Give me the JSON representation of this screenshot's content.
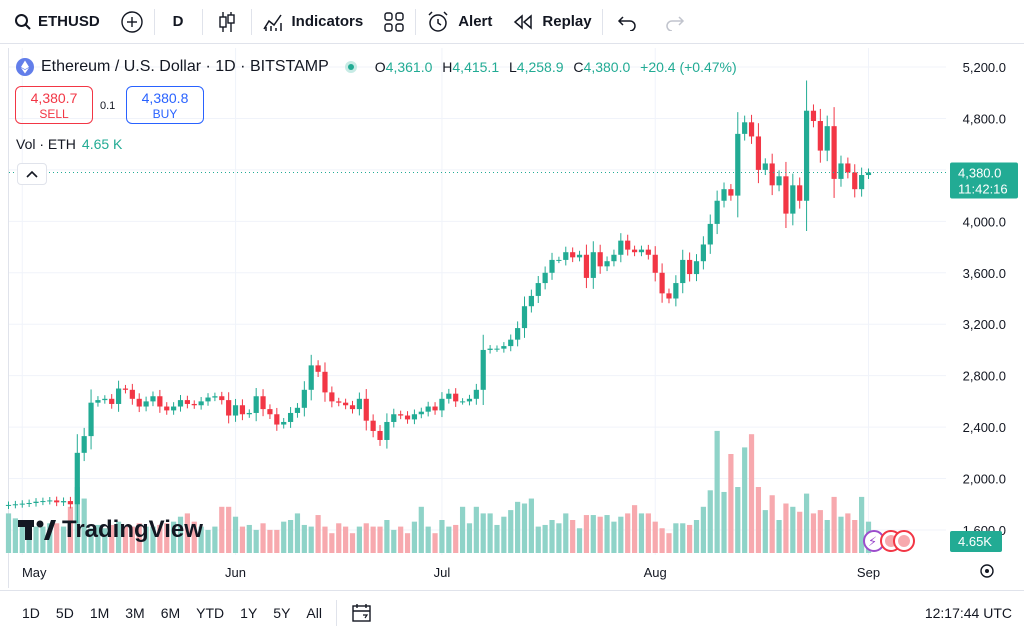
{
  "toolbar": {
    "symbol": "ETHUSD",
    "interval": "D",
    "indicators_label": "Indicators",
    "alert_label": "Alert",
    "replay_label": "Replay"
  },
  "legend": {
    "title": "Ethereum / U.S. Dollar · 1D · BITSTAMP",
    "o_label": "O",
    "o_value": "4,361.0",
    "h_label": "H",
    "h_value": "4,415.1",
    "l_label": "L",
    "l_value": "4,258.9",
    "c_label": "C",
    "c_value": "4,380.0",
    "change": "+20.4 (+0.47%)"
  },
  "trade": {
    "sell_price": "4,380.7",
    "sell_label": "SELL",
    "spread": "0.1",
    "buy_price": "4,380.8",
    "buy_label": "BUY"
  },
  "volume_legend": {
    "label": "Vol · ETH",
    "value": "4.65 K"
  },
  "price_tag": {
    "price": "4,380.0",
    "countdown": "11:42:16"
  },
  "volume_tag": "4.65K",
  "logo_text": "TradingView",
  "bottom": {
    "ranges": [
      "1D",
      "5D",
      "1M",
      "3M",
      "6M",
      "YTD",
      "1Y",
      "5Y",
      "All"
    ],
    "clock": "12:17:44 UTC"
  },
  "colors": {
    "up": "#22ab94",
    "down": "#f23645",
    "up_vol": "#8fd3c8",
    "down_vol": "#f7a9ae",
    "accent": "#2962ff"
  },
  "chart_data": {
    "type": "candlestick",
    "y_ticks": [
      "5,200.0",
      "4,800.0",
      "4,400.0",
      "4,000.0",
      "3,600.0",
      "3,200.0",
      "2,800.0",
      "2,400.0",
      "2,000.0",
      "1,600.0"
    ],
    "y_tick_values": [
      5200,
      4800,
      4400,
      4000,
      3600,
      3200,
      2800,
      2400,
      2000,
      1600
    ],
    "ylim": [
      1600,
      5200
    ],
    "x_ticks": [
      {
        "label": "May",
        "day": 2
      },
      {
        "label": "Jun",
        "day": 33
      },
      {
        "label": "Jul",
        "day": 63
      },
      {
        "label": "Aug",
        "day": 94
      },
      {
        "label": "Sep",
        "day": 125
      }
    ],
    "grid": true,
    "last_price": 4380.0,
    "closes": [
      1795,
      1800,
      1805,
      1810,
      1820,
      1825,
      1830,
      1815,
      1825,
      1800,
      2200,
      2330,
      2590,
      2610,
      2620,
      2580,
      2700,
      2690,
      2620,
      2560,
      2600,
      2640,
      2560,
      2530,
      2560,
      2610,
      2580,
      2570,
      2600,
      2630,
      2640,
      2610,
      2490,
      2570,
      2500,
      2510,
      2640,
      2540,
      2500,
      2420,
      2440,
      2510,
      2550,
      2690,
      2880,
      2830,
      2670,
      2600,
      2590,
      2570,
      2540,
      2620,
      2450,
      2370,
      2300,
      2440,
      2500,
      2490,
      2460,
      2500,
      2520,
      2560,
      2530,
      2620,
      2660,
      2600,
      2600,
      2620,
      2690,
      3000,
      3010,
      3010,
      3030,
      3080,
      3170,
      3340,
      3420,
      3520,
      3600,
      3700,
      3700,
      3760,
      3720,
      3740,
      3560,
      3760,
      3650,
      3690,
      3740,
      3850,
      3780,
      3760,
      3780,
      3740,
      3600,
      3440,
      3400,
      3520,
      3700,
      3590,
      3690,
      3820,
      3980,
      4160,
      4250,
      4200,
      4680,
      4770,
      4660,
      4400,
      4450,
      4280,
      4350,
      4060,
      4280,
      4160,
      4860,
      4780,
      4550,
      4740,
      4330,
      4450,
      4380,
      4250,
      4360,
      4380
    ],
    "volumes": [
      1.2,
      1.05,
      0.85,
      0.8,
      0.8,
      0.8,
      0.9,
      0.9,
      0.8,
      1.4,
      2.0,
      1.65,
      0.75,
      0.85,
      0.75,
      0.85,
      0.95,
      0.8,
      0.8,
      0.9,
      0.8,
      0.8,
      0.85,
      0.9,
      0.95,
      1.1,
      1.2,
      0.95,
      0.8,
      0.7,
      0.8,
      1.4,
      1.4,
      1.1,
      0.8,
      0.85,
      0.7,
      0.9,
      0.7,
      0.7,
      0.95,
      1.0,
      1.2,
      0.85,
      0.8,
      1.15,
      0.8,
      0.6,
      0.9,
      0.8,
      0.6,
      0.8,
      0.9,
      0.8,
      0.8,
      1.0,
      0.7,
      0.8,
      0.6,
      0.95,
      1.4,
      0.8,
      0.6,
      1.0,
      0.8,
      0.85,
      1.4,
      0.9,
      1.4,
      1.2,
      1.2,
      0.85,
      1.1,
      1.3,
      1.55,
      1.5,
      1.65,
      0.8,
      0.85,
      1.0,
      0.9,
      1.2,
      1.0,
      0.75,
      1.15,
      1.15,
      1.1,
      1.15,
      0.95,
      1.1,
      1.2,
      1.45,
      1.2,
      1.2,
      0.95,
      0.75,
      0.6,
      0.9,
      0.9,
      0.85,
      1.0,
      1.4,
      1.9,
      3.7,
      1.85,
      3.0,
      2.0,
      3.2,
      3.6,
      2.0,
      1.3,
      1.75,
      1.0,
      1.5,
      1.4,
      1.25,
      1.8,
      1.2,
      1.3,
      1.0,
      1.7,
      1.1,
      1.2,
      1.0,
      1.7,
      0.95
    ]
  }
}
